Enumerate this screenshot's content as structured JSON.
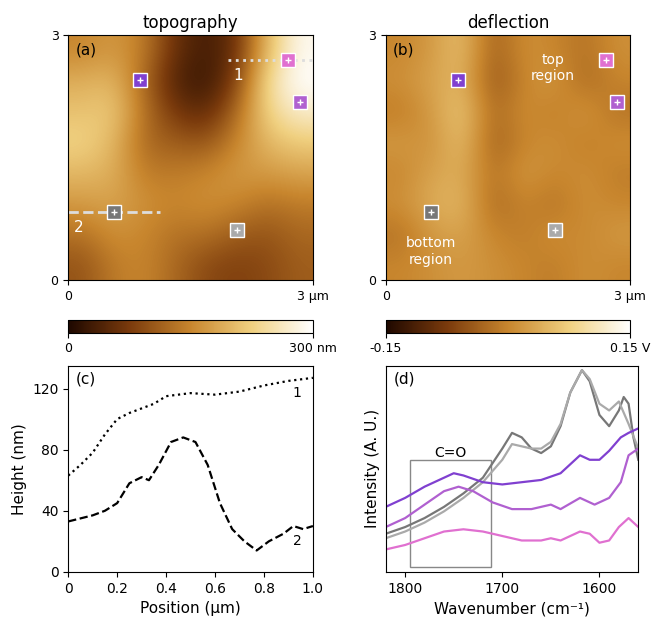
{
  "chart_data": [
    {
      "type": "heatmap",
      "panel": "(a)",
      "title": "topography",
      "xlim": [
        0,
        3
      ],
      "ylim": [
        0,
        3
      ],
      "xticks": [
        0,
        {
          "value": 3,
          "label": "3 µm"
        }
      ],
      "yticks": [
        0,
        3
      ],
      "cells": [
        [
          150,
          170,
          140,
          60,
          30,
          60,
          200,
          290
        ],
        [
          190,
          200,
          120,
          40,
          20,
          80,
          240,
          300
        ],
        [
          210,
          220,
          130,
          70,
          50,
          120,
          230,
          270
        ],
        [
          230,
          200,
          120,
          110,
          100,
          150,
          200,
          220
        ],
        [
          200,
          190,
          140,
          140,
          150,
          170,
          170,
          180
        ],
        [
          170,
          180,
          160,
          150,
          160,
          150,
          130,
          140
        ],
        [
          130,
          160,
          150,
          130,
          130,
          110,
          100,
          120
        ],
        [
          100,
          140,
          150,
          120,
          90,
          80,
          90,
          110
        ]
      ],
      "colorbar": {
        "range": [
          0,
          300
        ],
        "ticks": [
          0,
          {
            "value": 300,
            "label": "300 nm"
          }
        ]
      },
      "markers": [
        {
          "x": 0.88,
          "y": 2.45,
          "color": "#8040d0"
        },
        {
          "x": 2.7,
          "y": 2.69,
          "color": "#e070d0"
        },
        {
          "x": 2.84,
          "y": 2.18,
          "color": "#b060d0"
        },
        {
          "x": 0.56,
          "y": 0.83,
          "color": "#777777"
        },
        {
          "x": 2.07,
          "y": 0.61,
          "color": "#aaaaaa"
        }
      ],
      "profiles": [
        {
          "name": "1",
          "x": [
            1.96,
            3.0
          ],
          "y": [
            2.69,
            2.69
          ],
          "line_style": "dotted",
          "color": "#dddddd"
        },
        {
          "name": "2",
          "x": [
            0.0,
            1.13
          ],
          "y": [
            0.83,
            0.83
          ],
          "line_style": "dashed",
          "color": "#dddddd"
        }
      ]
    },
    {
      "type": "heatmap",
      "panel": "(b)",
      "title": "deflection",
      "xlim": [
        0,
        3
      ],
      "ylim": [
        0,
        3
      ],
      "xticks": [
        0,
        {
          "value": 3,
          "label": "3 µm"
        }
      ],
      "yticks": [
        0,
        3
      ],
      "cells": [
        [
          0.0,
          0.02,
          0.06,
          -0.04,
          0.01,
          0.0,
          -0.02,
          0.01
        ],
        [
          0.01,
          0.03,
          0.05,
          -0.05,
          0.0,
          0.02,
          -0.03,
          0.0
        ],
        [
          -0.01,
          0.02,
          0.07,
          -0.03,
          0.01,
          -0.01,
          0.02,
          -0.02
        ],
        [
          0.02,
          0.01,
          0.06,
          -0.04,
          0.0,
          0.01,
          -0.01,
          0.01
        ],
        [
          0.0,
          0.03,
          0.04,
          -0.02,
          0.02,
          0.0,
          0.01,
          -0.01
        ],
        [
          0.01,
          0.04,
          0.05,
          -0.03,
          0.0,
          -0.02,
          0.01,
          0.0
        ],
        [
          -0.02,
          0.02,
          0.03,
          0.0,
          -0.01,
          0.01,
          0.0,
          0.02
        ],
        [
          0.0,
          0.01,
          0.02,
          0.01,
          0.0,
          -0.01,
          0.01,
          0.0
        ]
      ],
      "colorbar": {
        "range": [
          -0.15,
          0.15
        ],
        "ticks": [
          -0.15,
          {
            "value": 0.15,
            "label": "0.15 V"
          }
        ]
      },
      "markers": [
        {
          "x": 0.88,
          "y": 2.45,
          "color": "#8040d0"
        },
        {
          "x": 2.7,
          "y": 2.69,
          "color": "#e070d0"
        },
        {
          "x": 2.84,
          "y": 2.18,
          "color": "#b060d0"
        },
        {
          "x": 0.56,
          "y": 0.83,
          "color": "#777777"
        },
        {
          "x": 2.07,
          "y": 0.61,
          "color": "#aaaaaa"
        }
      ],
      "texts": [
        {
          "text": "top\nregion",
          "x": 2.05,
          "y": 2.6
        },
        {
          "text": "bottom\nregion",
          "x": 0.55,
          "y": 0.35
        }
      ]
    },
    {
      "type": "line",
      "panel": "(c)",
      "x_label": "Position (µm)",
      "y_label": "Height (nm)",
      "xlim": [
        0,
        1.0
      ],
      "ylim": [
        0,
        135
      ],
      "xticks": [
        0,
        0.2,
        0.4,
        0.6,
        0.8,
        1.0
      ],
      "yticks": [
        0,
        40,
        80,
        120
      ],
      "series": [
        {
          "name": "1",
          "color": "#000000",
          "line_style": "dotted",
          "x": [
            0,
            0.05,
            0.1,
            0.15,
            0.2,
            0.25,
            0.3,
            0.35,
            0.4,
            0.5,
            0.6,
            0.7,
            0.8,
            0.9,
            1.0
          ],
          "values": [
            63,
            70,
            78,
            90,
            100,
            104,
            107,
            110,
            115,
            117,
            116,
            118,
            122,
            125,
            127
          ]
        },
        {
          "name": "2",
          "color": "#000000",
          "line_style": "dashed",
          "x": [
            0,
            0.05,
            0.1,
            0.15,
            0.2,
            0.25,
            0.3,
            0.33,
            0.37,
            0.42,
            0.47,
            0.52,
            0.57,
            0.62,
            0.67,
            0.72,
            0.77,
            0.82,
            0.88,
            0.92,
            0.96,
            1.0
          ],
          "values": [
            33,
            35,
            37,
            40,
            45,
            58,
            62,
            60,
            70,
            85,
            88,
            85,
            70,
            45,
            28,
            20,
            14,
            20,
            25,
            30,
            28,
            30
          ]
        }
      ]
    },
    {
      "type": "line",
      "panel": "(d)",
      "x_label": "Wavenumber (cm⁻¹)",
      "y_label": "Intensity (A. U.)",
      "xlim": [
        1820,
        1560
      ],
      "ylim": [
        0,
        0.92
      ],
      "xticks": [
        1800,
        1700,
        1600
      ],
      "yticks": [],
      "tick_labels": "x",
      "box": {
        "label": "C=O",
        "xrange": [
          1795,
          1712
        ],
        "yrange": [
          0.02,
          0.5
        ]
      },
      "series": [
        {
          "color": "#777777",
          "line_style": "solid",
          "x": [
            1820,
            1800,
            1780,
            1760,
            1740,
            1720,
            1700,
            1690,
            1680,
            1670,
            1660,
            1650,
            1640,
            1630,
            1618,
            1610,
            1600,
            1590,
            1580,
            1575,
            1570,
            1565,
            1560
          ],
          "values": [
            0.17,
            0.2,
            0.24,
            0.29,
            0.35,
            0.42,
            0.55,
            0.62,
            0.6,
            0.55,
            0.53,
            0.56,
            0.65,
            0.8,
            0.9,
            0.85,
            0.7,
            0.65,
            0.72,
            0.78,
            0.75,
            0.6,
            0.5
          ]
        },
        {
          "color": "#aaaaaa",
          "line_style": "solid",
          "x": [
            1820,
            1800,
            1780,
            1760,
            1740,
            1720,
            1700,
            1690,
            1680,
            1670,
            1660,
            1650,
            1640,
            1630,
            1618,
            1610,
            1600,
            1590,
            1580,
            1570,
            1560
          ],
          "values": [
            0.15,
            0.18,
            0.22,
            0.27,
            0.33,
            0.4,
            0.5,
            0.57,
            0.56,
            0.55,
            0.55,
            0.58,
            0.66,
            0.8,
            0.9,
            0.86,
            0.75,
            0.72,
            0.76,
            0.66,
            0.55
          ]
        },
        {
          "color": "#8040d0",
          "line_style": "solid",
          "x": [
            1820,
            1800,
            1780,
            1760,
            1750,
            1740,
            1720,
            1700,
            1680,
            1660,
            1640,
            1620,
            1610,
            1600,
            1590,
            1578,
            1570,
            1560
          ],
          "values": [
            0.29,
            0.33,
            0.38,
            0.42,
            0.44,
            0.43,
            0.4,
            0.39,
            0.4,
            0.41,
            0.44,
            0.52,
            0.5,
            0.5,
            0.54,
            0.6,
            0.62,
            0.64
          ]
        },
        {
          "color": "#b060d0",
          "line_style": "solid",
          "x": [
            1820,
            1800,
            1780,
            1760,
            1745,
            1730,
            1710,
            1690,
            1670,
            1650,
            1640,
            1620,
            1605,
            1590,
            1578,
            1570,
            1560
          ],
          "values": [
            0.2,
            0.24,
            0.3,
            0.36,
            0.38,
            0.36,
            0.31,
            0.28,
            0.28,
            0.3,
            0.28,
            0.33,
            0.3,
            0.33,
            0.4,
            0.52,
            0.55
          ]
        },
        {
          "color": "#e070d0",
          "line_style": "solid",
          "x": [
            1820,
            1800,
            1780,
            1760,
            1740,
            1720,
            1700,
            1680,
            1660,
            1650,
            1640,
            1620,
            1610,
            1600,
            1590,
            1580,
            1570,
            1560
          ],
          "values": [
            0.1,
            0.12,
            0.15,
            0.18,
            0.19,
            0.18,
            0.16,
            0.14,
            0.14,
            0.15,
            0.14,
            0.18,
            0.17,
            0.13,
            0.14,
            0.2,
            0.24,
            0.2
          ]
        }
      ]
    }
  ]
}
